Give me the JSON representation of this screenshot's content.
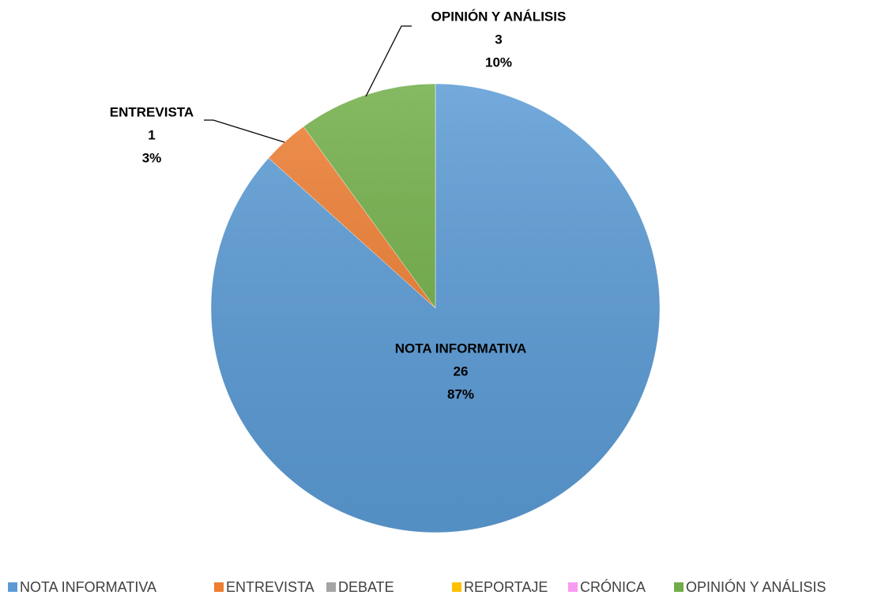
{
  "chart_data": {
    "type": "pie",
    "categories": [
      "NOTA INFORMATIVA",
      "ENTREVISTA",
      "DEBATE",
      "REPORTAJE",
      "CRÓNICA",
      "OPINIÓN Y ANÁLISIS"
    ],
    "values": [
      26,
      1,
      0,
      0,
      0,
      3
    ],
    "percent_labels": [
      "87%",
      "3%",
      null,
      null,
      null,
      "10%"
    ],
    "colors": [
      "#5b9bd5",
      "#ed7d31",
      "#a5a5a5",
      "#ffc000",
      "#f79bf2",
      "#70ad47"
    ],
    "legend": "bottom"
  }
}
